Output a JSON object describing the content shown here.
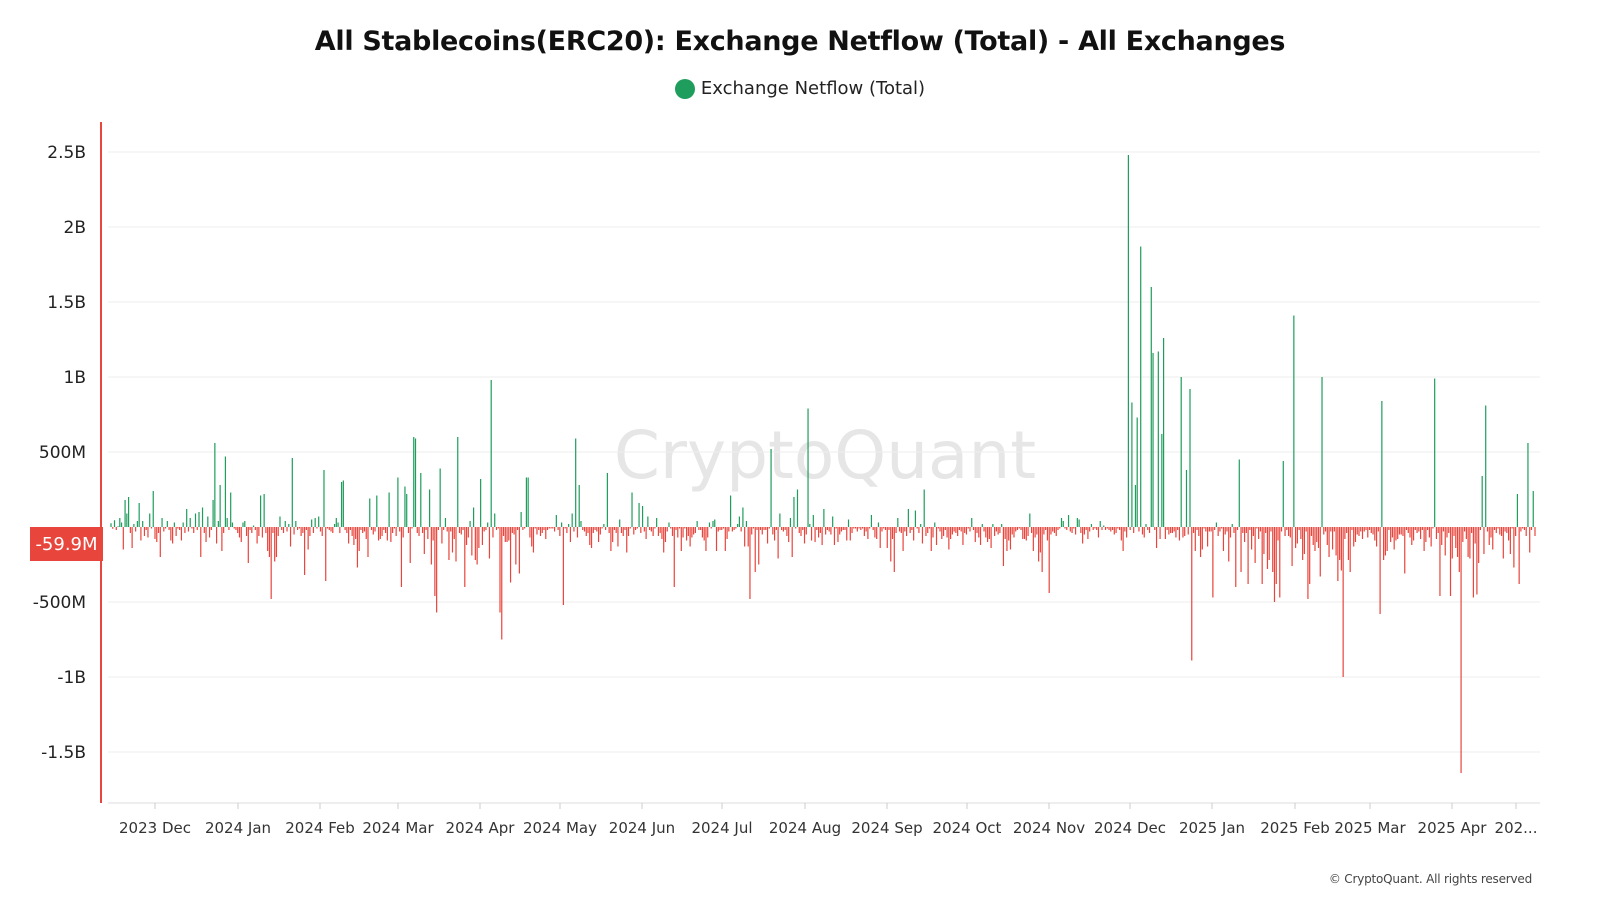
{
  "title": "All Stablecoins(ERC20): Exchange Netflow (Total) - All Exchanges",
  "legend": {
    "label": "Exchange Netflow (Total)",
    "color": "#1f9d5c"
  },
  "watermark": "CryptoQuant",
  "copyright": "© CryptoQuant. All rights reserved",
  "last_value_badge": "-59.9M",
  "colors": {
    "positive": "#1f9d5c",
    "negative": "#e8453c",
    "axis": "#e8453c",
    "grid": "#eeeeee"
  },
  "chart_data": {
    "type": "bar",
    "title": "All Stablecoins(ERC20): Exchange Netflow (Total) - All Exchanges",
    "xlabel": "",
    "ylabel": "",
    "grid": true,
    "legend_placement": "top-center",
    "y_ticks": [
      {
        "value": 2500000000,
        "label": "2.5B"
      },
      {
        "value": 2000000000,
        "label": "2B"
      },
      {
        "value": 1500000000,
        "label": "1.5B"
      },
      {
        "value": 1000000000,
        "label": "1B"
      },
      {
        "value": 500000000,
        "label": "500M"
      },
      {
        "value": -500000000,
        "label": "-500M"
      },
      {
        "value": -1000000000,
        "label": "-1B"
      },
      {
        "value": -1500000000,
        "label": "-1.5B"
      }
    ],
    "x_ticks": [
      "2023 Dec",
      "2024 Jan",
      "2024 Feb",
      "2024 Mar",
      "2024 Apr",
      "2024 May",
      "2024 Jun",
      "2024 Jul",
      "2024 Aug",
      "2024 Sep",
      "2024 Oct",
      "2024 Nov",
      "2024 Dec",
      "2025 Jan",
      "2025 Feb",
      "2025 Mar",
      "2025 Apr",
      "202..."
    ],
    "x_range": [
      "2023-11-15",
      "2025-05-11"
    ],
    "ylim": [
      -1800000000,
      2700000000
    ],
    "series": [
      {
        "name": "Exchange Netflow (Total)",
        "start_date": "2023-11-15",
        "values_millions": [
          25,
          -12,
          45,
          -20,
          5,
          60,
          30,
          -150,
          180,
          90,
          200,
          -40,
          -140,
          20,
          -30,
          40,
          160,
          -90,
          40,
          -60,
          -20,
          -70,
          90,
          -10,
          240,
          -80,
          -100,
          -40,
          -200,
          60,
          -30,
          -10,
          40,
          -20,
          -90,
          -110,
          30,
          -60,
          -10,
          -20,
          -90,
          30,
          -40,
          120,
          -30,
          60,
          -10,
          -40,
          90,
          -20,
          100,
          -200,
          130,
          -40,
          -100,
          70,
          -70,
          -20,
          180,
          560,
          -110,
          40,
          280,
          -160,
          -40,
          470,
          60,
          -20,
          230,
          30,
          -10,
          -20,
          -40,
          -70,
          -100,
          30,
          40,
          -60,
          -240,
          -20,
          -40,
          10,
          -20,
          -110,
          -60,
          210,
          -70,
          220,
          -40,
          -160,
          -200,
          -480,
          -40,
          -230,
          -200,
          -60,
          70,
          -20,
          -40,
          40,
          -30,
          20,
          -130,
          460,
          -50,
          40,
          -20,
          -10,
          -60,
          -40,
          -320,
          -20,
          -150,
          -60,
          50,
          -40,
          60,
          -10,
          70,
          -30,
          -60,
          380,
          -360,
          -10,
          -20,
          -30,
          -40,
          20,
          60,
          30,
          -40,
          300,
          310,
          -20,
          -40,
          -110,
          -20,
          -60,
          -120,
          -80,
          -270,
          -160,
          -20,
          -40,
          -30,
          -80,
          -200,
          190,
          -20,
          -50,
          -30,
          210,
          -90,
          -80,
          -60,
          -20,
          -40,
          -90,
          230,
          -100,
          -40,
          -10,
          -60,
          330,
          -30,
          -400,
          -70,
          270,
          220,
          -40,
          -240,
          -10,
          600,
          590,
          -40,
          -60,
          360,
          -40,
          -180,
          -20,
          -80,
          250,
          -250,
          -90,
          -460,
          -570,
          -20,
          390,
          -110,
          -20,
          60,
          -30,
          -220,
          -30,
          -170,
          -80,
          -230,
          600,
          -40,
          -50,
          -20,
          -400,
          -120,
          -70,
          40,
          -190,
          130,
          -220,
          -250,
          -140,
          320,
          -120,
          -30,
          -20,
          30,
          -210,
          980,
          -70,
          90,
          -20,
          -10,
          -570,
          -750,
          -60,
          -100,
          -100,
          -90,
          -370,
          -40,
          -50,
          -250,
          -20,
          -310,
          100,
          -20,
          -10,
          330,
          330,
          -70,
          -130,
          -170,
          -10,
          -50,
          -20,
          -60,
          -40,
          -20,
          -80,
          -20,
          -10,
          -10,
          -10,
          -30,
          80,
          -20,
          -60,
          30,
          -520,
          -10,
          -40,
          20,
          -100,
          90,
          -30,
          590,
          -70,
          280,
          40,
          -20,
          -30,
          -60,
          -40,
          -120,
          -140,
          -40,
          -20,
          -30,
          -100,
          -50,
          -10,
          20,
          -20,
          360,
          -40,
          -160,
          -100,
          -20,
          -40,
          -130,
          50,
          -40,
          -60,
          -20,
          -170,
          -60,
          -10,
          230,
          -50,
          -20,
          -10,
          160,
          -40,
          140,
          -30,
          -80,
          70,
          -20,
          -30,
          -60,
          -10,
          60,
          -60,
          -40,
          -80,
          -170,
          -100,
          -30,
          30,
          -10,
          -60,
          -400,
          -20,
          -70,
          -10,
          -160,
          -70,
          -10,
          -90,
          -60,
          -130,
          -70,
          -50,
          -40,
          40,
          -20,
          -20,
          -70,
          -90,
          -160,
          -70,
          30,
          -10,
          40,
          50,
          -160,
          -30,
          -20,
          -20,
          -10,
          -160,
          -80,
          -30,
          210,
          -30,
          -20,
          -10,
          20,
          70,
          -30,
          130,
          -130,
          40,
          -130,
          -480,
          -50,
          -10,
          -300,
          -20,
          -250,
          -20,
          -50,
          -20,
          -20,
          -110,
          -10,
          520,
          -50,
          -90,
          -20,
          -210,
          90,
          -20,
          -30,
          -20,
          -60,
          -100,
          60,
          -200,
          200,
          -10,
          250,
          -40,
          -60,
          -20,
          -110,
          -50,
          790,
          20,
          -90,
          80,
          -100,
          -20,
          -70,
          -40,
          -120,
          120,
          -50,
          -20,
          -30,
          -50,
          70,
          -120,
          -10,
          -100,
          -50,
          -30,
          -20,
          -20,
          -90,
          50,
          -90,
          -40,
          -10,
          -10,
          -30,
          -10,
          -20,
          -10,
          -60,
          -30,
          -80,
          -10,
          80,
          -20,
          -70,
          -80,
          30,
          -140,
          -30,
          -10,
          -20,
          -140,
          -20,
          -230,
          -80,
          -300,
          -40,
          60,
          -30,
          -40,
          -160,
          -30,
          -60,
          120,
          -40,
          -20,
          -90,
          110,
          -10,
          -40,
          20,
          -110,
          250,
          -60,
          -40,
          -10,
          -160,
          -70,
          30,
          -120,
          -10,
          -30,
          -80,
          -60,
          -20,
          -70,
          -150,
          -80,
          -50,
          -30,
          -40,
          -60,
          -20,
          -30,
          -120,
          -40,
          -50,
          -10,
          -30,
          60,
          -20,
          -100,
          -40,
          -70,
          -120,
          20,
          -30,
          -70,
          -100,
          -80,
          -140,
          20,
          -60,
          -30,
          -50,
          -40,
          20,
          -260,
          -80,
          -160,
          -90,
          -150,
          -50,
          -70,
          -30,
          -20,
          -10,
          -20,
          -80,
          -80,
          -90,
          -60,
          90,
          -40,
          -160,
          -70,
          -50,
          -230,
          -170,
          -300,
          -50,
          -20,
          -90,
          -440,
          -50,
          -30,
          -40,
          -60,
          -20,
          -10,
          60,
          40,
          -10,
          -20,
          80,
          -30,
          -40,
          -10,
          -50,
          60,
          50,
          -40,
          -110,
          -50,
          -20,
          -80,
          -30,
          20,
          -20,
          -10,
          -20,
          -70,
          40,
          -20,
          10,
          -20,
          -10,
          -20,
          -30,
          -20,
          -50,
          -40,
          -10,
          -20,
          -90,
          -160,
          -30,
          -70,
          2480,
          -20,
          830,
          -40,
          280,
          730,
          -30,
          1870,
          -50,
          -70,
          20,
          -20,
          -40,
          1600,
          1160,
          -20,
          -140,
          1170,
          -80,
          620,
          1260,
          -80,
          -20,
          -50,
          -40,
          -40,
          -30,
          -70,
          -20,
          -90,
          1000,
          -70,
          -60,
          380,
          -50,
          920,
          -890,
          -40,
          -160,
          -20,
          -60,
          -200,
          -150,
          -10,
          -30,
          -130,
          -30,
          -30,
          -470,
          -20,
          30,
          -60,
          -30,
          -10,
          -160,
          -50,
          -30,
          -230,
          -70,
          20,
          -40,
          -400,
          -20,
          450,
          -300,
          -40,
          -100,
          -40,
          -380,
          -20,
          -150,
          -60,
          -240,
          -10,
          -80,
          -30,
          -380,
          -180,
          -40,
          -280,
          -220,
          -30,
          -300,
          -500,
          -380,
          -90,
          -470,
          -30,
          440,
          -60,
          -20,
          -60,
          -70,
          -260,
          1410,
          -140,
          -110,
          -20,
          -80,
          -220,
          -180,
          -30,
          -480,
          -380,
          -60,
          -120,
          -160,
          -100,
          -140,
          -330,
          1000,
          -50,
          -30,
          -120,
          -200,
          -30,
          -150,
          -30,
          -190,
          -360,
          -220,
          -290,
          -1000,
          -80,
          -40,
          -220,
          -300,
          -20,
          -130,
          -100,
          -50,
          -60,
          -30,
          -80,
          -30,
          -20,
          -70,
          -20,
          -40,
          -50,
          -90,
          -130,
          -30,
          -580,
          840,
          -220,
          -190,
          -160,
          -20,
          -100,
          -70,
          -150,
          -90,
          -80,
          -50,
          -50,
          -60,
          -310,
          -20,
          -40,
          -70,
          -120,
          -90,
          -20,
          -40,
          -30,
          -80,
          -20,
          -160,
          -100,
          -20,
          -70,
          -130,
          -10,
          990,
          -80,
          -40,
          -460,
          -120,
          -30,
          -190,
          -70,
          -40,
          -460,
          -210,
          -60,
          -140,
          -200,
          -300,
          -1640,
          -100,
          -30,
          -80,
          -200,
          -210,
          -40,
          -470,
          -110,
          -450,
          -240,
          -20,
          340,
          -180,
          810,
          -30,
          -120,
          -70,
          -150,
          -20,
          -40,
          -10,
          -50,
          -60,
          -210,
          -30,
          -40,
          -90,
          -180,
          -10,
          -270,
          -60,
          220,
          -380,
          -30,
          -10,
          -20,
          -60,
          560,
          -170,
          -20,
          240,
          -60
        ],
        "note_positive": "",
        "note_negative": ""
      }
    ]
  }
}
